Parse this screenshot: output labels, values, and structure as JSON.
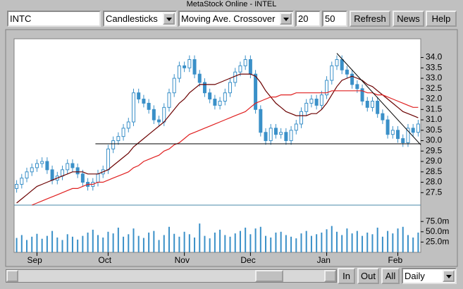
{
  "window": {
    "title": "MetaStock Online - INTEL"
  },
  "toolbar": {
    "symbol": "INTC",
    "chart_style": "Candlesticks",
    "study": "Moving Ave. Crossover",
    "period1": "20",
    "period2": "50",
    "buttons": [
      "Refresh",
      "News",
      "Help"
    ]
  },
  "chart_data": {
    "type": "candlestick",
    "categories": [
      null,
      null,
      null,
      null,
      "Sep",
      null,
      null,
      null,
      null,
      null,
      null,
      null,
      null,
      null,
      null,
      null,
      null,
      null,
      "Oct",
      null,
      null,
      null,
      null,
      null,
      null,
      null,
      null,
      null,
      null,
      null,
      null,
      null,
      null,
      "Nov",
      null,
      null,
      null,
      null,
      null,
      null,
      null,
      null,
      null,
      null,
      null,
      null,
      "Dec",
      null,
      null,
      null,
      null,
      null,
      null,
      null,
      null,
      null,
      null,
      null,
      null,
      null,
      null,
      "Jan",
      null,
      null,
      null,
      null,
      null,
      null,
      null,
      null,
      null,
      null,
      null,
      null,
      null,
      "Feb",
      null,
      null,
      null,
      null
    ],
    "open": [
      27.7,
      27.9,
      28.2,
      28.5,
      28.7,
      28.9,
      29.0,
      28.6,
      28.1,
      28.3,
      28.6,
      28.9,
      28.7,
      28.4,
      28.0,
      27.8,
      28.0,
      28.4,
      28.6,
      29.6,
      30.0,
      30.2,
      30.6,
      30.9,
      32.3,
      32.0,
      31.8,
      31.5,
      31.0,
      30.9,
      31.6,
      32.3,
      33.0,
      33.6,
      33.5,
      33.9,
      33.2,
      32.8,
      32.3,
      32.0,
      31.7,
      31.9,
      32.3,
      32.8,
      33.3,
      33.6,
      33.9,
      33.2,
      31.5,
      30.4,
      30.0,
      30.6,
      30.3,
      30.4,
      30.0,
      30.5,
      30.8,
      31.4,
      31.8,
      32.0,
      31.7,
      32.2,
      32.9,
      33.6,
      33.9,
      33.4,
      33.2,
      32.7,
      32.5,
      31.9,
      31.6,
      31.9,
      31.3,
      31.0,
      30.3,
      30.5,
      30.1,
      29.9,
      30.6,
      30.4
    ],
    "high": [
      28.1,
      28.4,
      28.7,
      28.9,
      29.1,
      29.2,
      29.2,
      28.8,
      28.5,
      28.8,
      29.1,
      29.1,
      28.9,
      28.6,
      28.2,
      28.2,
      28.6,
      28.8,
      29.8,
      30.2,
      30.4,
      30.8,
      31.1,
      32.5,
      32.5,
      32.2,
      32.0,
      31.7,
      31.2,
      31.8,
      32.5,
      33.2,
      33.8,
      33.8,
      34.1,
      34.1,
      33.4,
      33.0,
      32.5,
      32.2,
      32.1,
      32.5,
      33.0,
      33.5,
      33.8,
      34.1,
      34.1,
      33.4,
      31.7,
      30.6,
      30.8,
      30.8,
      30.6,
      30.6,
      30.7,
      31.0,
      31.6,
      32.0,
      32.2,
      32.2,
      32.4,
      33.1,
      33.8,
      34.1,
      34.1,
      33.6,
      33.4,
      32.9,
      32.7,
      32.1,
      32.1,
      32.1,
      31.5,
      31.2,
      30.7,
      30.7,
      30.3,
      30.8,
      30.8,
      31.0
    ],
    "low": [
      27.5,
      27.7,
      28.0,
      28.3,
      28.5,
      28.7,
      28.4,
      27.9,
      27.9,
      28.1,
      28.4,
      28.5,
      28.2,
      27.8,
      27.6,
      27.6,
      27.8,
      28.2,
      28.4,
      29.4,
      29.8,
      30.0,
      30.4,
      30.7,
      31.8,
      31.6,
      31.3,
      30.8,
      30.7,
      30.7,
      31.4,
      32.1,
      32.8,
      33.3,
      33.3,
      33.0,
      32.6,
      32.1,
      31.8,
      31.5,
      31.5,
      31.7,
      32.1,
      32.6,
      33.1,
      33.4,
      33.0,
      31.3,
      30.2,
      29.8,
      29.8,
      30.1,
      30.1,
      29.8,
      29.8,
      30.3,
      30.6,
      31.2,
      31.6,
      31.5,
      31.5,
      32.0,
      32.7,
      33.4,
      33.2,
      33.0,
      32.5,
      32.3,
      31.7,
      31.4,
      31.4,
      31.1,
      30.8,
      30.1,
      30.1,
      29.9,
      29.7,
      29.7,
      30.2,
      30.2
    ],
    "close": [
      27.9,
      28.2,
      28.5,
      28.7,
      28.9,
      29.0,
      28.6,
      28.1,
      28.3,
      28.6,
      28.9,
      28.7,
      28.4,
      28.0,
      27.8,
      28.0,
      28.4,
      28.6,
      29.6,
      30.0,
      30.2,
      30.6,
      30.9,
      32.3,
      32.0,
      31.8,
      31.5,
      31.0,
      30.9,
      31.6,
      32.3,
      33.0,
      33.6,
      33.5,
      33.9,
      33.2,
      32.8,
      32.3,
      32.0,
      31.7,
      31.9,
      32.3,
      32.8,
      33.3,
      33.6,
      33.9,
      33.2,
      31.5,
      30.4,
      30.0,
      30.6,
      30.3,
      30.4,
      30.0,
      30.5,
      30.8,
      31.4,
      31.8,
      32.0,
      31.7,
      32.2,
      32.9,
      33.6,
      33.9,
      33.4,
      33.2,
      32.7,
      32.5,
      31.9,
      31.6,
      31.9,
      31.3,
      31.0,
      30.3,
      30.5,
      30.1,
      29.9,
      30.6,
      30.4,
      30.8
    ],
    "up_color": "#ffffff",
    "down_color": "#3a90c8",
    "candle_outline": "#3a90c8",
    "moving_averages": [
      {
        "color": "#6b0000",
        "values": [
          27.0,
          27.2,
          27.4,
          27.6,
          27.8,
          27.9,
          28.0,
          28.1,
          28.2,
          28.3,
          28.4,
          28.5,
          28.5,
          28.5,
          28.4,
          28.4,
          28.4,
          28.5,
          28.6,
          28.8,
          29.0,
          29.2,
          29.4,
          29.7,
          29.9,
          30.1,
          30.3,
          30.5,
          30.7,
          30.9,
          31.2,
          31.5,
          31.8,
          32.0,
          32.3,
          32.5,
          32.7,
          32.7,
          32.7,
          32.7,
          32.8,
          32.9,
          33.0,
          33.1,
          33.2,
          33.2,
          33.2,
          33.1,
          32.8,
          32.4,
          32.1,
          31.8,
          31.6,
          31.4,
          31.3,
          31.2,
          31.2,
          31.2,
          31.3,
          31.3,
          31.5,
          31.8,
          32.2,
          32.6,
          32.9,
          33.0,
          33.1,
          33.0,
          32.9,
          32.7,
          32.6,
          32.4,
          32.2,
          32.0,
          31.8,
          31.6,
          31.4,
          31.3,
          31.2,
          31.1
        ]
      },
      {
        "color": "#e02020",
        "values": [
          null,
          null,
          null,
          26.9,
          27.0,
          27.1,
          27.2,
          27.3,
          27.4,
          27.5,
          27.6,
          27.7,
          27.7,
          27.8,
          27.9,
          27.9,
          28.0,
          28.0,
          28.1,
          28.2,
          28.3,
          28.4,
          28.5,
          28.7,
          28.8,
          29.0,
          29.1,
          29.2,
          29.3,
          29.5,
          29.6,
          29.8,
          29.9,
          30.1,
          30.3,
          30.4,
          30.5,
          30.6,
          30.7,
          30.8,
          30.9,
          31.0,
          31.1,
          31.2,
          31.3,
          31.4,
          31.6,
          31.8,
          31.9,
          32.0,
          32.1,
          32.1,
          32.2,
          32.2,
          32.2,
          32.3,
          32.3,
          32.3,
          32.3,
          32.3,
          32.3,
          32.3,
          32.4,
          32.4,
          32.4,
          32.4,
          32.4,
          32.4,
          32.4,
          32.3,
          32.3,
          32.2,
          32.2,
          32.1,
          32.0,
          31.9,
          31.8,
          31.7,
          31.6,
          31.6
        ]
      }
    ],
    "trendlines": [
      {
        "color": "#000000",
        "x": [
          16,
          80
        ],
        "y": [
          29.85,
          29.85
        ]
      },
      {
        "color": "#000000",
        "x": [
          63.5,
          80
        ],
        "y": [
          34.2,
          29.8
        ]
      }
    ],
    "ylim": [
      26.9,
      34.9
    ],
    "yticks": [
      {
        "value": 34,
        "label": "34.0"
      },
      33.5,
      {
        "value": 33,
        "label": "33.0"
      },
      32.5,
      {
        "value": 32,
        "label": "32.0"
      },
      31.5,
      {
        "value": 31,
        "label": "31.0"
      },
      30.5,
      {
        "value": 30,
        "label": "30.0"
      },
      29.5,
      {
        "value": 29,
        "label": "29.0"
      },
      28.5,
      {
        "value": 28,
        "label": "28.0"
      },
      27.5
    ],
    "volume": {
      "color": "#3a90c8",
      "ylim": [
        0,
        113
      ],
      "yticks": [
        {
          "value": 75,
          "label": "75.0m"
        },
        {
          "value": 50,
          "label": "50.0m"
        },
        {
          "value": 25,
          "label": "25.0m"
        }
      ],
      "values": [
        35,
        42,
        30,
        38,
        45,
        33,
        40,
        52,
        36,
        30,
        44,
        38,
        31,
        40,
        48,
        55,
        42,
        36,
        50,
        46,
        60,
        38,
        44,
        58,
        40,
        35,
        48,
        52,
        30,
        42,
        62,
        45,
        38,
        50,
        44,
        36,
        70,
        40,
        34,
        48,
        55,
        42,
        38,
        46,
        52,
        60,
        44,
        58,
        62,
        40,
        36,
        48,
        50,
        42,
        38,
        34,
        46,
        52,
        40,
        44,
        48,
        56,
        64,
        50,
        42,
        58,
        46,
        52,
        40,
        48,
        44,
        60,
        38,
        52,
        46,
        58,
        62,
        42,
        36,
        48
      ]
    }
  },
  "footer": {
    "buttons": [
      "In",
      "Out",
      "All"
    ],
    "interval": "Daily"
  }
}
